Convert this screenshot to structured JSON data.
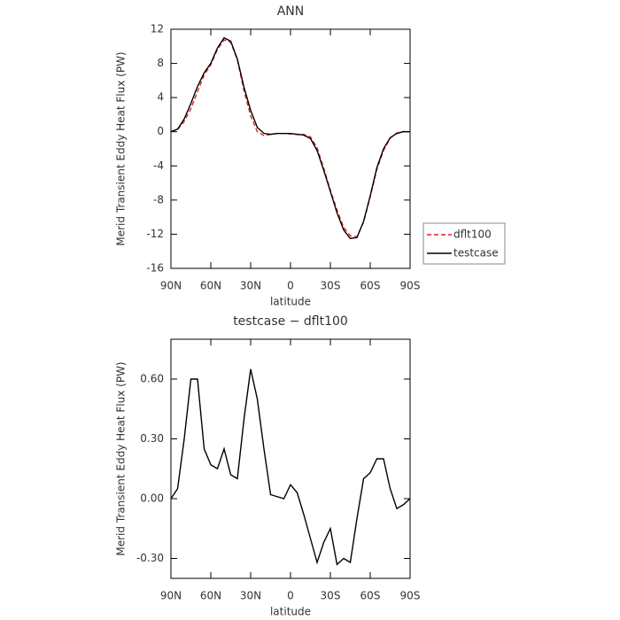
{
  "chart_data": [
    {
      "type": "line",
      "title": "ANN",
      "xlabel": "latitude",
      "ylabel": "Merid Transient Eddy Heat Flux (PW)",
      "x": [
        90,
        85,
        80,
        75,
        70,
        65,
        60,
        55,
        50,
        45,
        40,
        35,
        30,
        25,
        20,
        15,
        10,
        5,
        0,
        -5,
        -10,
        -15,
        -20,
        -25,
        -30,
        -35,
        -40,
        -45,
        -50,
        -55,
        -60,
        -65,
        -70,
        -75,
        -80,
        -85,
        -90
      ],
      "series": [
        {
          "name": "dflt100",
          "color": "#e02020",
          "linestyle": "dashed",
          "values": [
            0,
            0.25,
            1.2,
            2.7,
            4.7,
            6.65,
            7.83,
            9.65,
            10.75,
            10.48,
            8.4,
            4.8,
            1.85,
            0,
            -0.45,
            -0.32,
            -0.21,
            -0.2,
            -0.27,
            -0.33,
            -0.32,
            -0.6,
            -1.88,
            -4.28,
            -6.85,
            -9.17,
            -11.2,
            -12.18,
            -12.3,
            -10.6,
            -7.63,
            -4.4,
            -2.2,
            -0.75,
            -0.15,
            0.03,
            0
          ]
        },
        {
          "name": "testcase",
          "color": "#000000",
          "linestyle": "solid",
          "values": [
            0,
            0.3,
            1.5,
            3.3,
            5.3,
            6.9,
            8.0,
            9.8,
            11.0,
            10.6,
            8.5,
            5.2,
            2.5,
            0.5,
            -0.2,
            -0.3,
            -0.2,
            -0.2,
            -0.2,
            -0.3,
            -0.4,
            -0.8,
            -2.2,
            -4.5,
            -7.0,
            -9.5,
            -11.5,
            -12.5,
            -12.4,
            -10.5,
            -7.5,
            -4.2,
            -2.0,
            -0.7,
            -0.2,
            0,
            0
          ]
        }
      ],
      "xlim": [
        90,
        -90
      ],
      "xticks": [
        {
          "value": 90,
          "label": "90N"
        },
        {
          "value": 60,
          "label": "60N"
        },
        {
          "value": 30,
          "label": "30N"
        },
        0,
        {
          "value": -30,
          "label": "30S"
        },
        {
          "value": -60,
          "label": "60S"
        },
        {
          "value": -90,
          "label": "90S"
        }
      ],
      "ylim": [
        -16,
        12
      ],
      "yticks": [
        12,
        8,
        4,
        0,
        -4,
        -8,
        -12,
        -16
      ],
      "legend": "right"
    },
    {
      "type": "line",
      "title": "testcase − dflt100",
      "xlabel": "latitude",
      "ylabel": "Merid Transient Eddy Heat Flux (PW)",
      "x": [
        90,
        85,
        80,
        75,
        70,
        65,
        60,
        55,
        50,
        45,
        40,
        35,
        30,
        25,
        20,
        15,
        10,
        5,
        0,
        -5,
        -10,
        -15,
        -20,
        -25,
        -30,
        -35,
        -40,
        -45,
        -50,
        -55,
        -60,
        -65,
        -70,
        -75,
        -80,
        -85,
        -90
      ],
      "series": [
        {
          "color": "#000000",
          "linestyle": "solid",
          "values": [
            0,
            0.05,
            0.3,
            0.6,
            0.6,
            0.25,
            0.17,
            0.15,
            0.25,
            0.12,
            0.1,
            0.4,
            0.65,
            0.5,
            0.25,
            0.02,
            0.01,
            0,
            0.07,
            0.03,
            -0.08,
            -0.2,
            -0.32,
            -0.22,
            -0.15,
            -0.33,
            -0.3,
            -0.32,
            -0.1,
            0.1,
            0.13,
            0.2,
            0.2,
            0.05,
            -0.05,
            -0.03,
            0
          ]
        }
      ],
      "xlim": [
        90,
        -90
      ],
      "xticks": [
        {
          "value": 90,
          "label": "90N"
        },
        {
          "value": 60,
          "label": "60N"
        },
        {
          "value": 30,
          "label": "30N"
        },
        0,
        {
          "value": -30,
          "label": "30S"
        },
        {
          "value": -60,
          "label": "60S"
        },
        {
          "value": -90,
          "label": "90S"
        }
      ],
      "ylim": [
        -0.4,
        0.8
      ],
      "yticks": [
        {
          "value": 0.6,
          "label": "0.60"
        },
        {
          "value": 0.3,
          "label": "0.30"
        },
        {
          "value": 0,
          "label": "0.00"
        },
        {
          "value": -0.3,
          "label": "-0.30"
        }
      ]
    }
  ]
}
